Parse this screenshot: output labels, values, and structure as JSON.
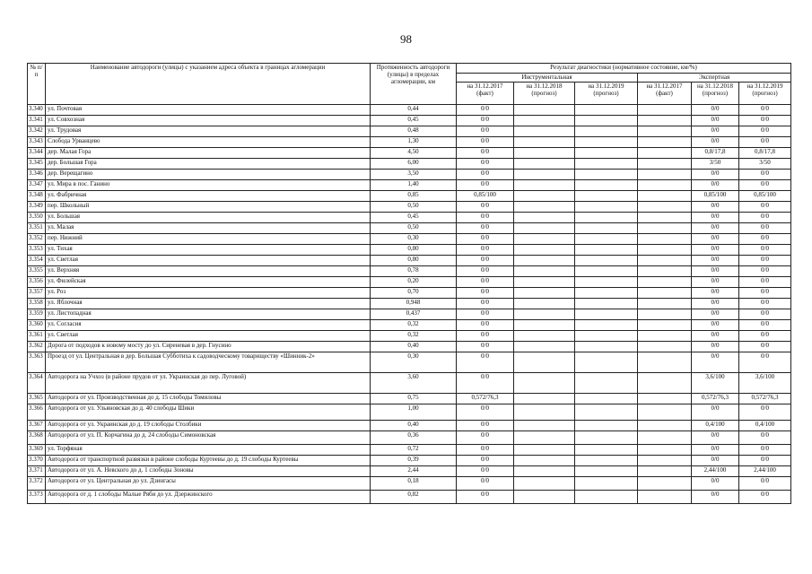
{
  "page_number": "98",
  "header": {
    "num": "№ п/п",
    "name": "Наименование автодороги (улицы) с указанием адреса объекта в границах агломерации",
    "length": "Протяженность автодороги (улицы) в пределах агломерации, км",
    "result": "Результат диагностики (нормативное состояние, км/%)",
    "instrumental": "Инструментальная",
    "expert": "Экспертная",
    "periods": [
      "на 31.12.2017 (факт)",
      "на 31.12.2018 (прогноз)",
      "на 31.12.2019 (прогноз)",
      "на 31.12.2017 (факт)",
      "на 31.12.2018 (прогноз)",
      "на 31.12.2019 (прогноз)"
    ]
  },
  "rows": [
    {
      "num": "3.340",
      "name": "ул. Почтовая",
      "length": "0,44",
      "i2017": "0/0",
      "e2018": "0/0",
      "e2019": "0/0"
    },
    {
      "num": "3.341",
      "name": "ул. Совхозная",
      "length": "0,45",
      "i2017": "0/0",
      "e2018": "0/0",
      "e2019": "0/0"
    },
    {
      "num": "3.342",
      "name": "ул. Трудовая",
      "length": "0,48",
      "i2017": "0/0",
      "e2018": "0/0",
      "e2019": "0/0"
    },
    {
      "num": "3.343",
      "name": "Слобода Урванцево",
      "length": "1,30",
      "i2017": "0/0",
      "e2018": "0/0",
      "e2019": "0/0"
    },
    {
      "num": "3.344",
      "name": "дер. Малая Гора",
      "length": "4,50",
      "i2017": "0/0",
      "e2018": "0,8/17,8",
      "e2019": "0,8/17,8"
    },
    {
      "num": "3.345",
      "name": "дер. Большая Гора",
      "length": "6,00",
      "i2017": "0/0",
      "e2018": "3/50",
      "e2019": "3/50"
    },
    {
      "num": "3.346",
      "name": "дер. Верещагино",
      "length": "3,50",
      "i2017": "0/0",
      "e2018": "0/0",
      "e2019": "0/0"
    },
    {
      "num": "3.347",
      "name": "ул. Мира в пос. Ганино",
      "length": "1,40",
      "i2017": "0/0",
      "e2018": "0/0",
      "e2019": "0/0"
    },
    {
      "num": "3.348",
      "name": "ул. Фабричная",
      "length": "0,85",
      "i2017": "0,85/100",
      "e2018": "0,85/100",
      "e2019": "0,85/100"
    },
    {
      "num": "3.349",
      "name": "пер. Школьный",
      "length": "0,50",
      "i2017": "0/0",
      "e2018": "0/0",
      "e2019": "0/0"
    },
    {
      "num": "3.350",
      "name": "ул. Большая",
      "length": "0,45",
      "i2017": "0/0",
      "e2018": "0/0",
      "e2019": "0/0"
    },
    {
      "num": "3.351",
      "name": "ул. Малая",
      "length": "0,50",
      "i2017": "0/0",
      "e2018": "0/0",
      "e2019": "0/0"
    },
    {
      "num": "3.352",
      "name": "пер. Нижний",
      "length": "0,30",
      "i2017": "0/0",
      "e2018": "0/0",
      "e2019": "0/0"
    },
    {
      "num": "3.353",
      "name": "ул. Тихая",
      "length": "0,80",
      "i2017": "0/0",
      "e2018": "0/0",
      "e2019": "0/0"
    },
    {
      "num": "3.354",
      "name": "ул. Светлая",
      "length": "0,80",
      "i2017": "0/0",
      "e2018": "0/0",
      "e2019": "0/0"
    },
    {
      "num": "3.355",
      "name": "ул. Верхняя",
      "length": "0,78",
      "i2017": "0/0",
      "e2018": "0/0",
      "e2019": "0/0"
    },
    {
      "num": "3.356",
      "name": "ул. Филейская",
      "length": "0,20",
      "i2017": "0/0",
      "e2018": "0/0",
      "e2019": "0/0"
    },
    {
      "num": "3.357",
      "name": "ул. Роз",
      "length": "0,70",
      "i2017": "0/0",
      "e2018": "0/0",
      "e2019": "0/0"
    },
    {
      "num": "3.358",
      "name": "ул. Яблочная",
      "length": "0,948",
      "i2017": "0/0",
      "e2018": "0/0",
      "e2019": "0/0"
    },
    {
      "num": "3.359",
      "name": "ул. Листопадная",
      "length": "0,437",
      "i2017": "0/0",
      "e2018": "0/0",
      "e2019": "0/0"
    },
    {
      "num": "3.360",
      "name": "ул. Согласия",
      "length": "0,32",
      "i2017": "0/0",
      "e2018": "0/0",
      "e2019": "0/0"
    },
    {
      "num": "3.361",
      "name": "ул. Светлая",
      "length": "0,32",
      "i2017": "0/0",
      "e2018": "0/0",
      "e2019": "0/0"
    },
    {
      "num": "3.362",
      "name": "Дорога от подходов к новому мосту до ул. Сиреневая в дер. Гнусино",
      "length": "0,40",
      "i2017": "0/0",
      "e2018": "0/0",
      "e2019": "0/0"
    },
    {
      "num": "3.363",
      "name": "Проезд от ул. Центральная в дер. Большая Субботиха к садоводческому товариществу «Шинник-2»",
      "length": "0,30",
      "i2017": "0/0",
      "e2018": "0/0",
      "e2019": "0/0"
    },
    {
      "num": "3.364",
      "name": "Автодорога на Учхоз (в районе прудов от ул. Украинская до пер. Луговой)",
      "length": "3,60",
      "i2017": "0/0",
      "e2018": "3,6/100",
      "e2019": "3,6/100"
    },
    {
      "num": "3.365",
      "name": "Автодорога от ул. Производственная до д. 15 слободы Томиловы",
      "length": "0,75",
      "i2017": "0,572/76,3",
      "e2018": "0,572/76,3",
      "e2019": "0,572/76,3"
    },
    {
      "num": "3.366",
      "name": "Автодорога от ул. Ульяновская до д. 40 слободы Шики",
      "length": "1,00",
      "i2017": "0/0",
      "e2018": "0/0",
      "e2019": "0/0"
    },
    {
      "num": "3.367",
      "name": "Автодорога от ул. Украинская до д. 19 слободы Столбики",
      "length": "0,40",
      "i2017": "0/0",
      "e2018": "0,4/100",
      "e2019": "0,4/100"
    },
    {
      "num": "3.368",
      "name": "Автодорога от ул. П. Корчагина до д. 24 слободы Симоновская",
      "length": "0,36",
      "i2017": "0/0",
      "e2018": "0/0",
      "e2019": "0/0"
    },
    {
      "num": "3.369",
      "name": "ул. Торфяная",
      "length": "0,72",
      "i2017": "0/0",
      "e2018": "0/0",
      "e2019": "0/0"
    },
    {
      "num": "3.370",
      "name": "Автодорога от транспортной развязки в районе слободы Куртеевы до д. 19 слободы Куртеевы",
      "length": "0,39",
      "i2017": "0/0",
      "e2018": "0/0",
      "e2019": "0/0"
    },
    {
      "num": "3.371",
      "name": "Автодорога от ул. А. Невского до д. 1 слободы Зоновы",
      "length": "2,44",
      "i2017": "0/0",
      "e2018": "2,44/100",
      "e2019": "2,44/100"
    },
    {
      "num": "3.372",
      "name": "Автодорога от ул. Центральная до ул. Дзингасы",
      "length": "0,18",
      "i2017": "0/0",
      "e2018": "0/0",
      "e2019": "0/0"
    },
    {
      "num": "3.373",
      "name": "Автодорога от д. 1 слободы Малые Ряби до ул. Дзержинского",
      "length": "0,82",
      "i2017": "0/0",
      "e2018": "0/0",
      "e2019": "0/0"
    }
  ]
}
